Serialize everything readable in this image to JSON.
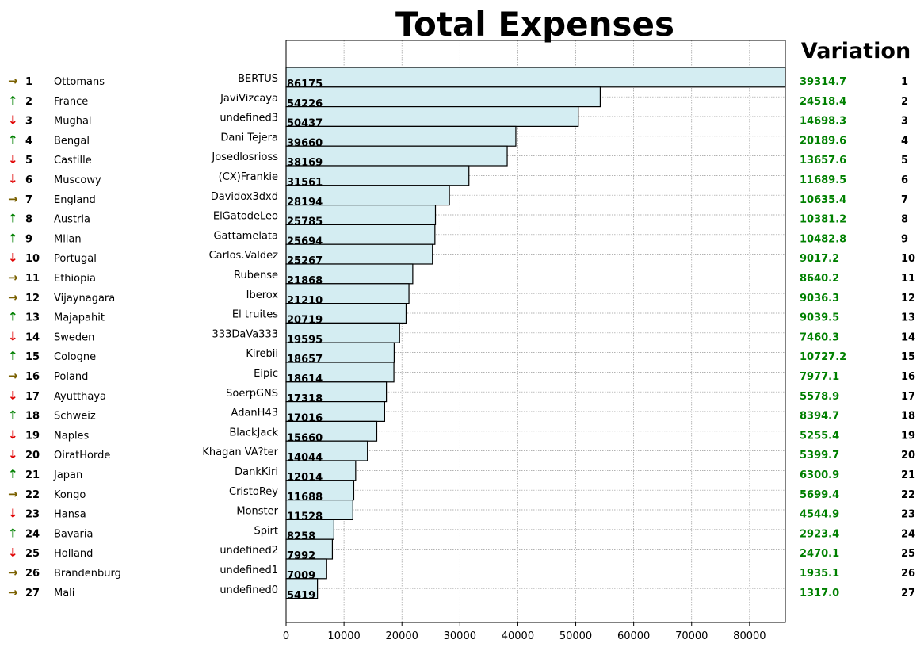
{
  "chart_data": {
    "type": "bar",
    "orientation": "horizontal",
    "title": "Total Expenses",
    "variation_header": "Variation",
    "xlim": [
      0,
      86175
    ],
    "x_ticks": [
      0,
      10000,
      20000,
      30000,
      40000,
      50000,
      60000,
      70000,
      80000
    ],
    "grid": true,
    "bar_color": "#d4edf2",
    "bar_edge_color": "#000000",
    "variation_color": "#008000",
    "trend_colors": {
      "same": "#7a6000",
      "up": "#008000",
      "down": "#e00000"
    },
    "trend_symbols": {
      "same": "→",
      "up": "↑",
      "down": "↓"
    },
    "categories": [
      "BERTUS",
      "JaviVizcaya",
      "undefined3",
      "Dani Tejera",
      "Josedlosrioss",
      "(CX)Frankie",
      "Davidox3dxd",
      "ElGatodeLeo",
      "Gattamelata",
      "Carlos.Valdez",
      "Rubense",
      "Iberox",
      "El truites",
      "333DaVa333",
      "Kirebii",
      "Eipic",
      "SoerpGNS",
      "AdanH43",
      "BlackJack",
      "Khagan VA?ter",
      "DankKiri",
      "CristoRey",
      "Monster",
      "Spirt",
      "undefined2",
      "undefined1",
      "undefined0"
    ],
    "values": [
      86175,
      54226,
      50437,
      39660,
      38169,
      31561,
      28194,
      25785,
      25694,
      25267,
      21868,
      21210,
      20719,
      19595,
      18657,
      18614,
      17318,
      17016,
      15660,
      14044,
      12014,
      11688,
      11528,
      8258,
      7992,
      7009,
      5419
    ],
    "ranks": [
      1,
      2,
      3,
      4,
      5,
      6,
      7,
      8,
      9,
      10,
      11,
      12,
      13,
      14,
      15,
      16,
      17,
      18,
      19,
      20,
      21,
      22,
      23,
      24,
      25,
      26,
      27
    ],
    "countries": [
      "Ottomans",
      "France",
      "Mughal",
      "Bengal",
      "Castille",
      "Muscowy",
      "England",
      "Austria",
      "Milan",
      "Portugal",
      "Ethiopia",
      "Vijaynagara",
      "Majapahit",
      "Sweden",
      "Cologne",
      "Poland",
      "Ayutthaya",
      "Schweiz",
      "Naples",
      "OiratHorde",
      "Japan",
      "Kongo",
      "Hansa",
      "Bavaria",
      "Holland",
      "Brandenburg",
      "Mali"
    ],
    "trends": [
      "same",
      "up",
      "down",
      "up",
      "down",
      "down",
      "same",
      "up",
      "up",
      "down",
      "same",
      "same",
      "up",
      "down",
      "up",
      "same",
      "down",
      "up",
      "down",
      "down",
      "up",
      "same",
      "down",
      "up",
      "down",
      "same",
      "same"
    ],
    "variations": [
      "39314.7",
      "24518.4",
      "14698.3",
      "20189.6",
      "13657.6",
      "11689.5",
      "10635.4",
      "10381.2",
      "10482.8",
      "9017.2",
      "8640.2",
      "9036.3",
      "9039.5",
      "7460.3",
      "10727.2",
      "7977.1",
      "5578.9",
      "8394.7",
      "5255.4",
      "5399.7",
      "6300.9",
      "5699.4",
      "4544.9",
      "2923.4",
      "2470.1",
      "1935.1",
      "1317.0"
    ],
    "variation_ranks": [
      1,
      2,
      3,
      4,
      5,
      6,
      7,
      8,
      9,
      10,
      11,
      12,
      13,
      14,
      15,
      16,
      17,
      18,
      19,
      20,
      21,
      22,
      23,
      24,
      25,
      26,
      27
    ]
  }
}
